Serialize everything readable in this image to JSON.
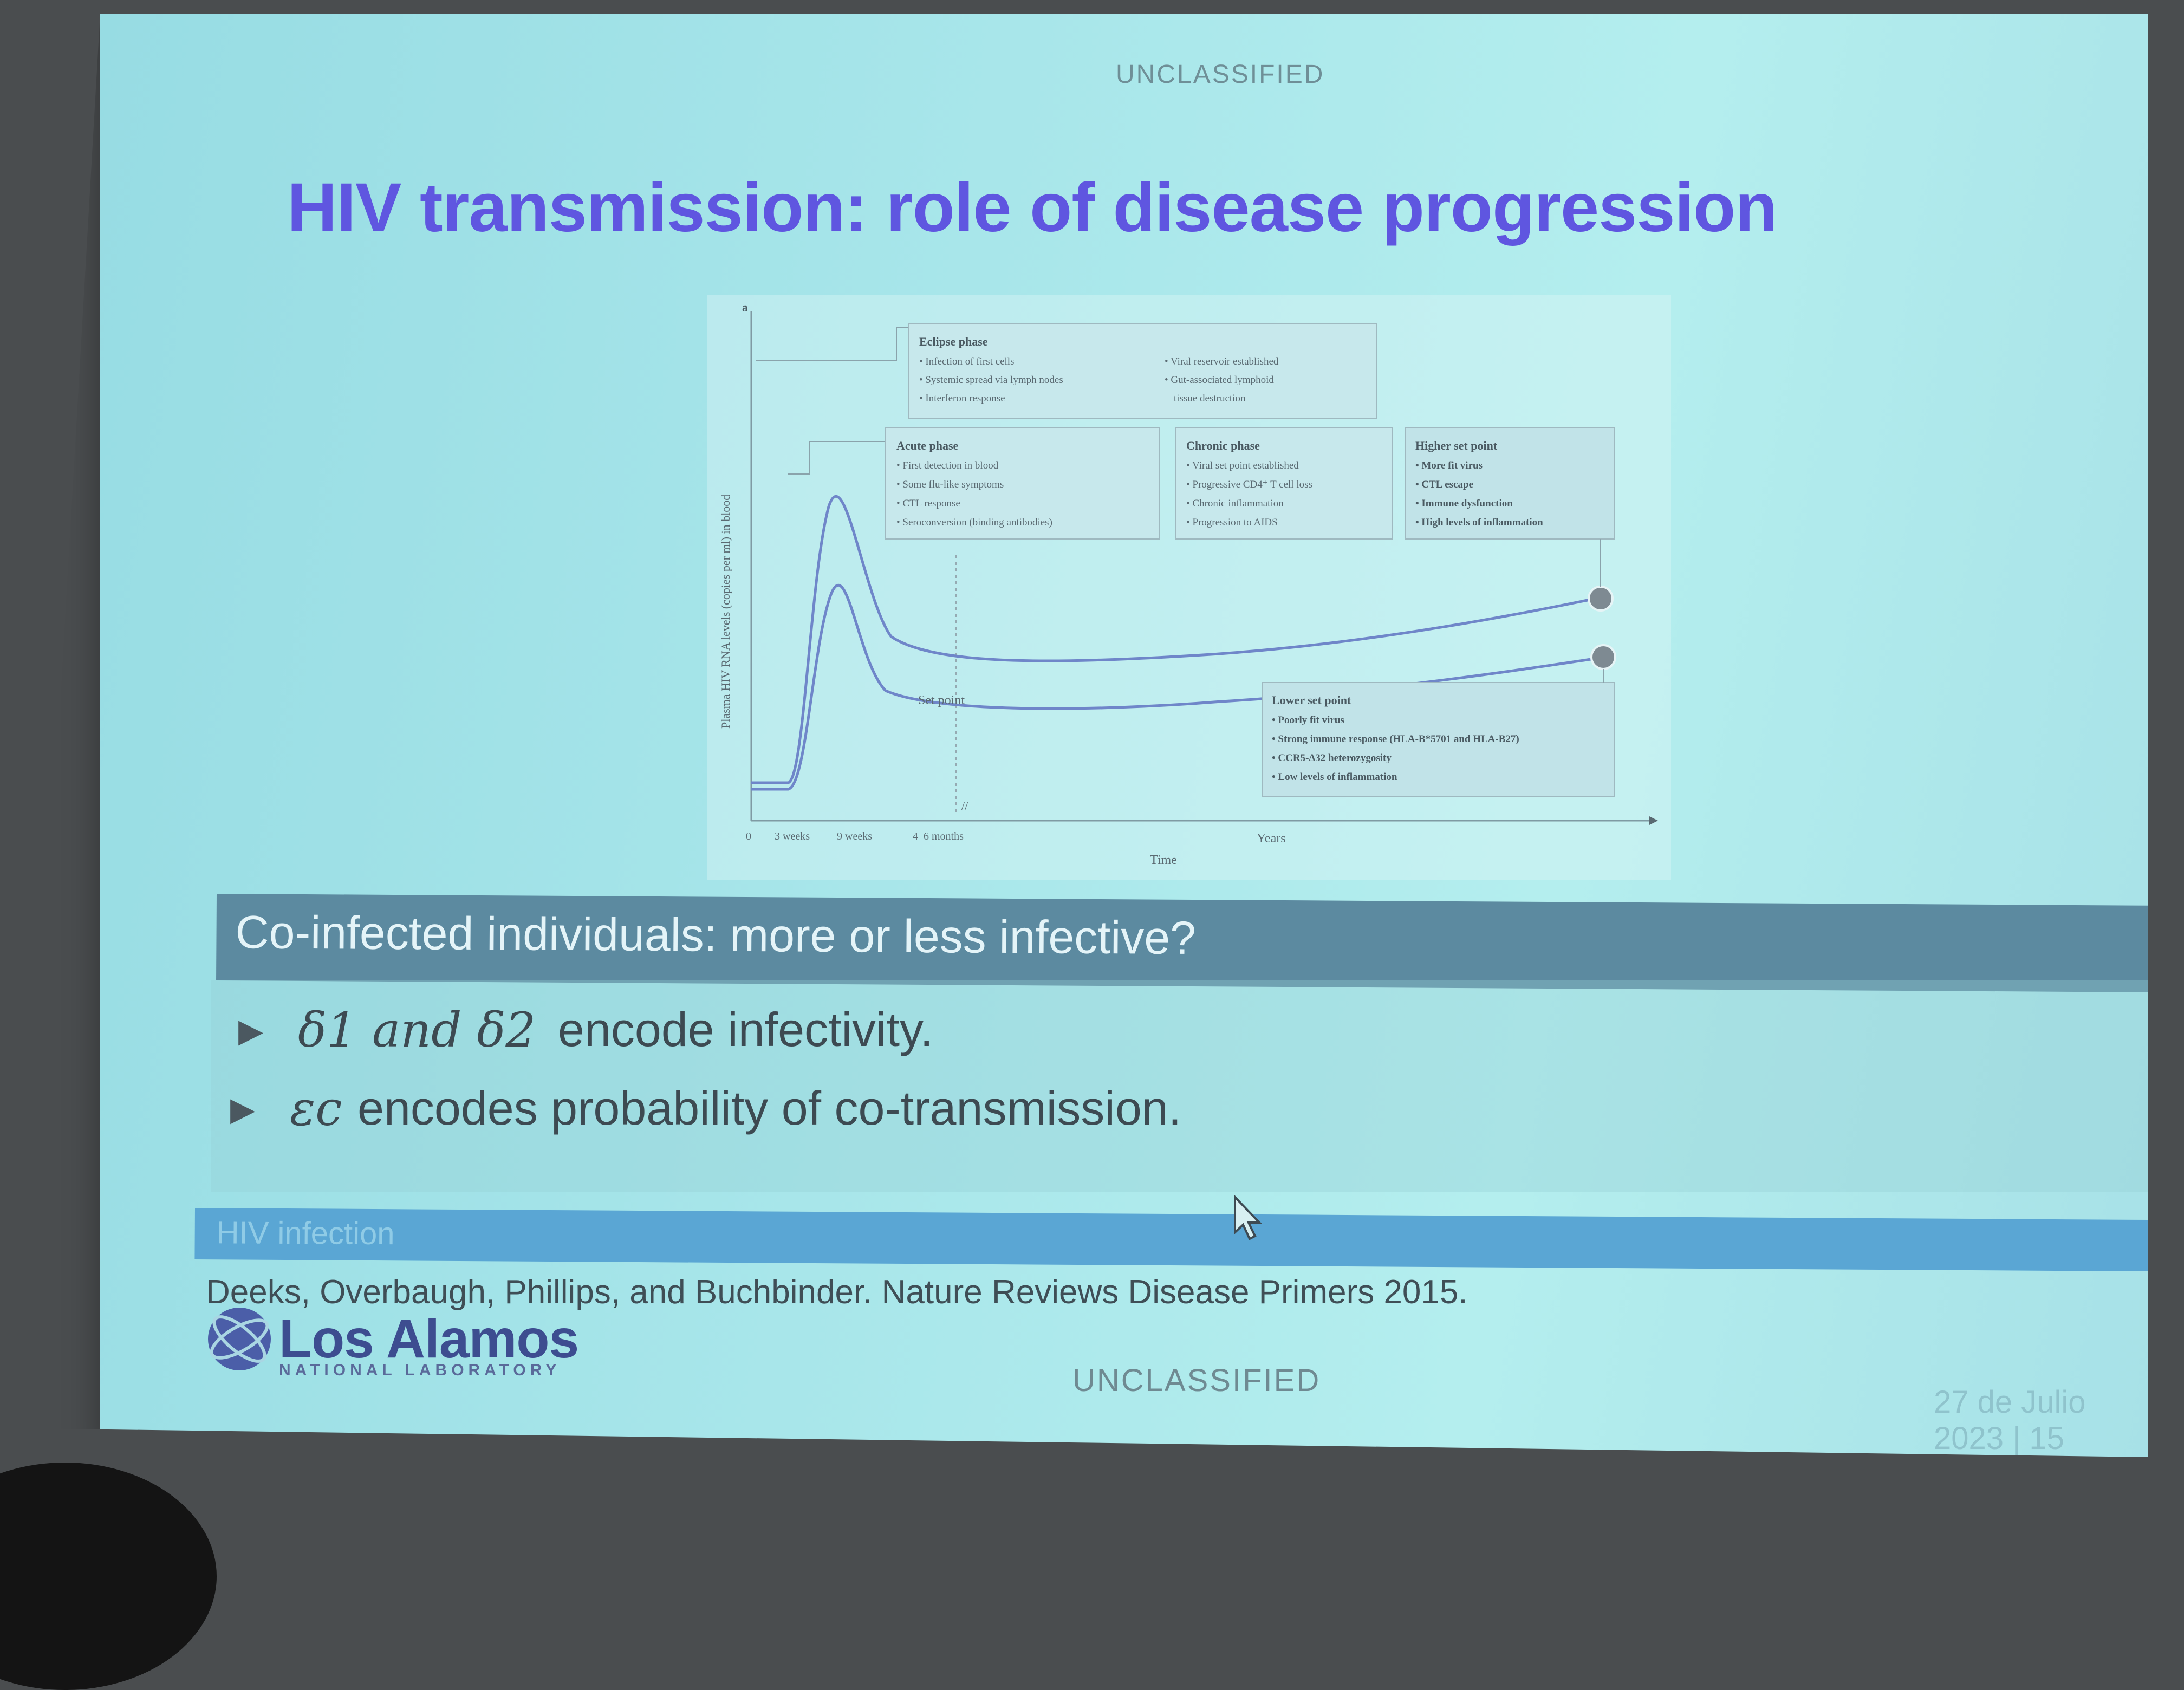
{
  "slide": {
    "classification_top": "UNCLASSIFIED",
    "title": "HIV transmission: role of disease progression",
    "section_heading": "Co-infected individuals: more or less infective?",
    "bullets": [
      {
        "symbol": "δ1 and δ2",
        "text": "encode infectivity."
      },
      {
        "symbol": "εc",
        "text": "encodes probability of co-transmission."
      }
    ],
    "footer_section": "HIV infection",
    "citation": "Deeks, Overbaugh, Phillips, and Buchbinder. Nature Reviews Disease Primers 2015.",
    "logo": {
      "name": "Los Alamos",
      "sub": "NATIONAL LABORATORY"
    },
    "classification_bottom": "UNCLASSIFIED",
    "date_page": "27 de Julio 2023 | 15"
  },
  "figure": {
    "panel_label": "a",
    "y_axis_label": "Plasma HIV RNA levels (copies per ml) in blood",
    "x_axis_label": "Time",
    "x_ticks": [
      "0",
      "3 weeks",
      "9 weeks",
      "4–6 months",
      "Years"
    ],
    "set_point_label": "Set point",
    "boxes": {
      "eclipse": {
        "title": "Eclipse phase",
        "left": [
          "• Infection of first cells",
          "• Systemic spread via lymph nodes",
          "• Interferon response"
        ],
        "right": [
          "• Viral reservoir established",
          "• Gut-associated lymphoid",
          "tissue destruction"
        ]
      },
      "acute": {
        "title": "Acute phase",
        "items": [
          "• First detection in blood",
          "• Some flu-like symptoms",
          "• CTL response",
          "• Seroconversion (binding antibodies)"
        ]
      },
      "chronic": {
        "title": "Chronic phase",
        "items": [
          "• Viral set point established",
          "• Progressive CD4⁺ T cell loss",
          "• Chronic inflammation",
          "• Progression to AIDS"
        ]
      },
      "higher": {
        "title": "Higher set point",
        "items": [
          "• More fit virus",
          "• CTL escape",
          "• Immune dysfunction",
          "• High levels of inflammation"
        ]
      },
      "lower": {
        "title": "Lower set point",
        "items": [
          "• Poorly fit virus",
          "• Strong immune response (HLA-B*5701 and HLA-B27)",
          "• CCR5-Δ32 heterozygosity",
          "• Low levels of inflammation"
        ]
      }
    }
  },
  "colors": {
    "title": "#5f56e0",
    "band": "#5c8aa0",
    "footer_band": "#5aa6d4",
    "curve": "#6f86c9"
  }
}
